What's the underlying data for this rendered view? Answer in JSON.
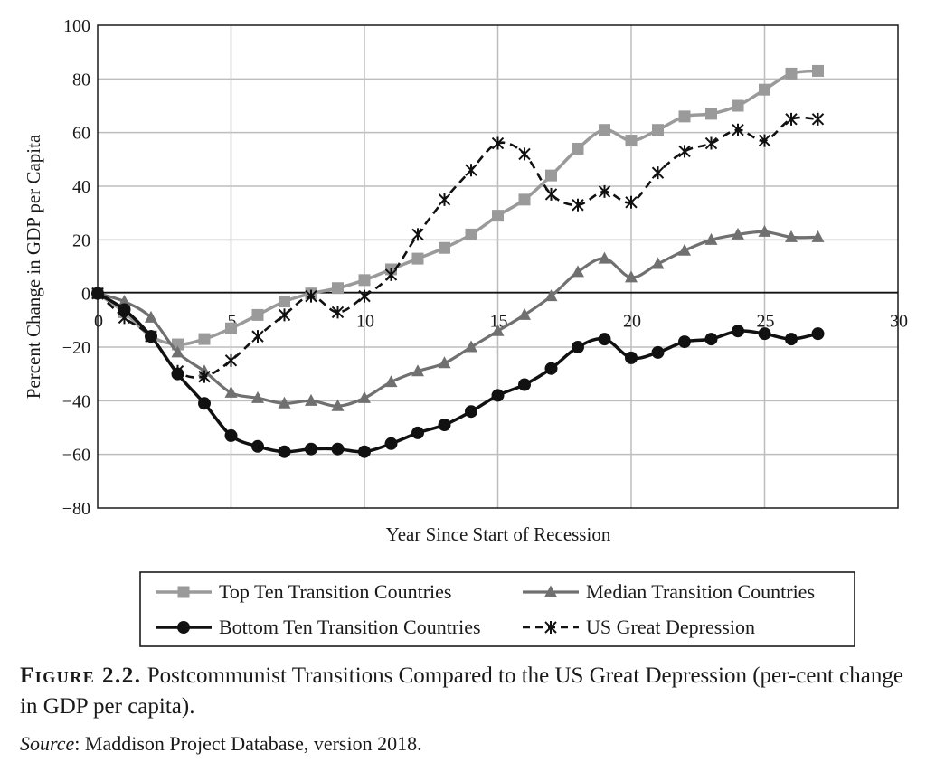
{
  "chart_data": {
    "type": "line",
    "xlabel": "Year Since Start of Recession",
    "ylabel": "Percent Change in GDP per Capita",
    "xlim": [
      0,
      30
    ],
    "ylim": [
      -80,
      100
    ],
    "x_ticks": [
      "0",
      "5",
      "10",
      "15",
      "20",
      "25",
      "30"
    ],
    "y_ticks": [
      "100",
      "80",
      "60",
      "40",
      "20",
      "0",
      "−20",
      "−40",
      "−60",
      "−80"
    ],
    "grid": true,
    "legend_position": "bottom",
    "series": [
      {
        "name": "Top Ten Transition Countries",
        "color": "#9a9a9a",
        "marker": "square",
        "dash": "solid",
        "x": [
          0,
          1,
          2,
          3,
          4,
          5,
          6,
          7,
          8,
          9,
          10,
          11,
          12,
          13,
          14,
          15,
          16,
          17,
          18,
          19,
          20,
          21,
          22,
          23,
          24,
          25,
          26,
          27
        ],
        "values": [
          0,
          -7,
          -16,
          -19,
          -17,
          -13,
          -8,
          -3,
          0,
          2,
          5,
          9,
          13,
          17,
          22,
          29,
          35,
          44,
          54,
          61,
          57,
          61,
          66,
          67,
          70,
          76,
          82,
          83
        ]
      },
      {
        "name": "Median Transition Countries",
        "color": "#707070",
        "marker": "triangle",
        "dash": "solid",
        "x": [
          0,
          1,
          2,
          3,
          4,
          5,
          6,
          7,
          8,
          9,
          10,
          11,
          12,
          13,
          14,
          15,
          16,
          17,
          18,
          19,
          20,
          21,
          22,
          23,
          24,
          25,
          26,
          27
        ],
        "values": [
          0,
          -3,
          -9,
          -22,
          -29,
          -37,
          -39,
          -41,
          -40,
          -42,
          -39,
          -33,
          -29,
          -26,
          -20,
          -14,
          -8,
          -1,
          8,
          13,
          6,
          11,
          16,
          20,
          22,
          23,
          21,
          21
        ]
      },
      {
        "name": "Bottom Ten Transition Countries",
        "color": "#111111",
        "marker": "circle",
        "dash": "solid",
        "x": [
          0,
          1,
          2,
          3,
          4,
          5,
          6,
          7,
          8,
          9,
          10,
          11,
          12,
          13,
          14,
          15,
          16,
          17,
          18,
          19,
          20,
          21,
          22,
          23,
          24,
          25,
          26,
          27
        ],
        "values": [
          0,
          -6,
          -16,
          -30,
          -41,
          -53,
          -57,
          -59,
          -58,
          -58,
          -59,
          -56,
          -52,
          -49,
          -44,
          -38,
          -34,
          -28,
          -20,
          -17,
          -24,
          -22,
          -18,
          -17,
          -14,
          -15,
          -17,
          -15
        ]
      },
      {
        "name": "US Great Depression",
        "color": "#111111",
        "marker": "asterisk",
        "dash": "dashed",
        "x": [
          0,
          1,
          2,
          3,
          4,
          5,
          6,
          7,
          8,
          9,
          10,
          11,
          12,
          13,
          14,
          15,
          16,
          17,
          18,
          19,
          20,
          21,
          22,
          23,
          24,
          25,
          26,
          27
        ],
        "values": [
          0,
          -9,
          -16,
          -29,
          -31,
          -25,
          -16,
          -8,
          -1,
          -7,
          -1,
          7,
          22,
          35,
          46,
          56,
          52,
          37,
          33,
          38,
          34,
          45,
          53,
          56,
          61,
          57,
          65,
          65
        ]
      }
    ]
  },
  "caption": {
    "figure_label": "Figure 2.2.",
    "text": "Postcommunist Transitions Compared to the US Great Depression (per-cent change in GDP per capita).",
    "source_label": "Source",
    "source_text": ": Maddison Project Database, version 2018."
  }
}
